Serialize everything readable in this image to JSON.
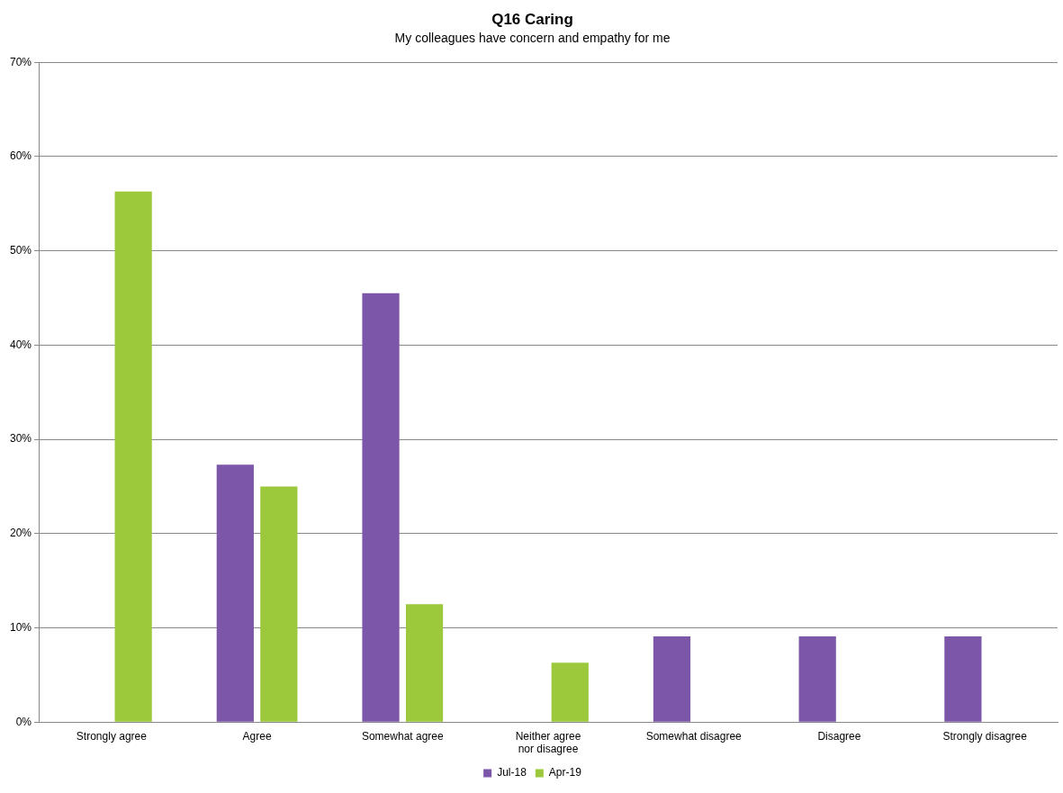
{
  "chart_data": {
    "type": "bar",
    "title": "Q16 Caring",
    "subtitle": "My colleagues have concern and empathy for me",
    "categories": [
      "Strongly agree",
      "Agree",
      "Somewhat agree",
      "Neither agree nor disagree",
      "Somewhat disagree",
      "Disagree",
      "Strongly disagree"
    ],
    "series": [
      {
        "name": "Jul-18",
        "color": "#7b56a9",
        "values": [
          0,
          27.3,
          45.5,
          0,
          9.1,
          9.1,
          9.1
        ]
      },
      {
        "name": "Apr-19",
        "color": "#9cc83c",
        "values": [
          56.3,
          25,
          12.5,
          6.3,
          0,
          0,
          0
        ]
      }
    ],
    "ylim": [
      0,
      70
    ],
    "yticks": [
      {
        "value": 0,
        "label": "0%"
      },
      {
        "value": 10,
        "label": "10%"
      },
      {
        "value": 20,
        "label": "20%"
      },
      {
        "value": 30,
        "label": "30%"
      },
      {
        "value": 40,
        "label": "40%"
      },
      {
        "value": 50,
        "label": "50%"
      },
      {
        "value": 60,
        "label": "60%"
      },
      {
        "value": 70,
        "label": "70%"
      }
    ],
    "grid": "y",
    "legend": "bottom"
  }
}
